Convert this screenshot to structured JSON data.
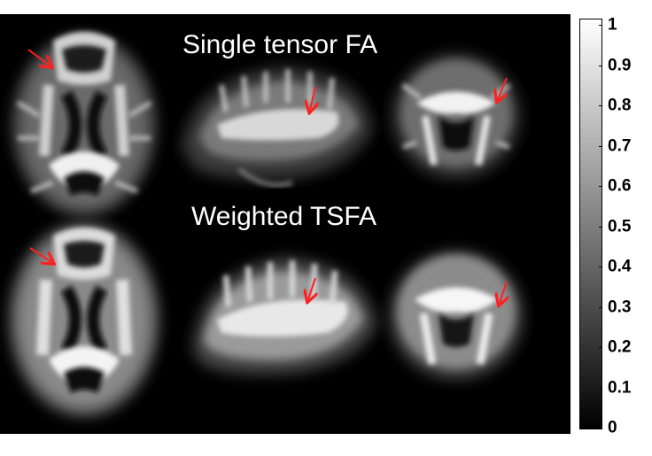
{
  "titles": {
    "top": "Single tensor FA",
    "bottom": "Weighted TSFA"
  },
  "colorbar": {
    "ticks": [
      "1",
      "0.9",
      "0.8",
      "0.7",
      "0.6",
      "0.5",
      "0.4",
      "0.3",
      "0.2",
      "0.1",
      "0"
    ],
    "range": [
      0,
      1
    ],
    "gradient": [
      "#ffffff",
      "#000000"
    ]
  },
  "colors": {
    "background": "#000000",
    "arrow": "#ff2020",
    "text": "#ffffff"
  }
}
